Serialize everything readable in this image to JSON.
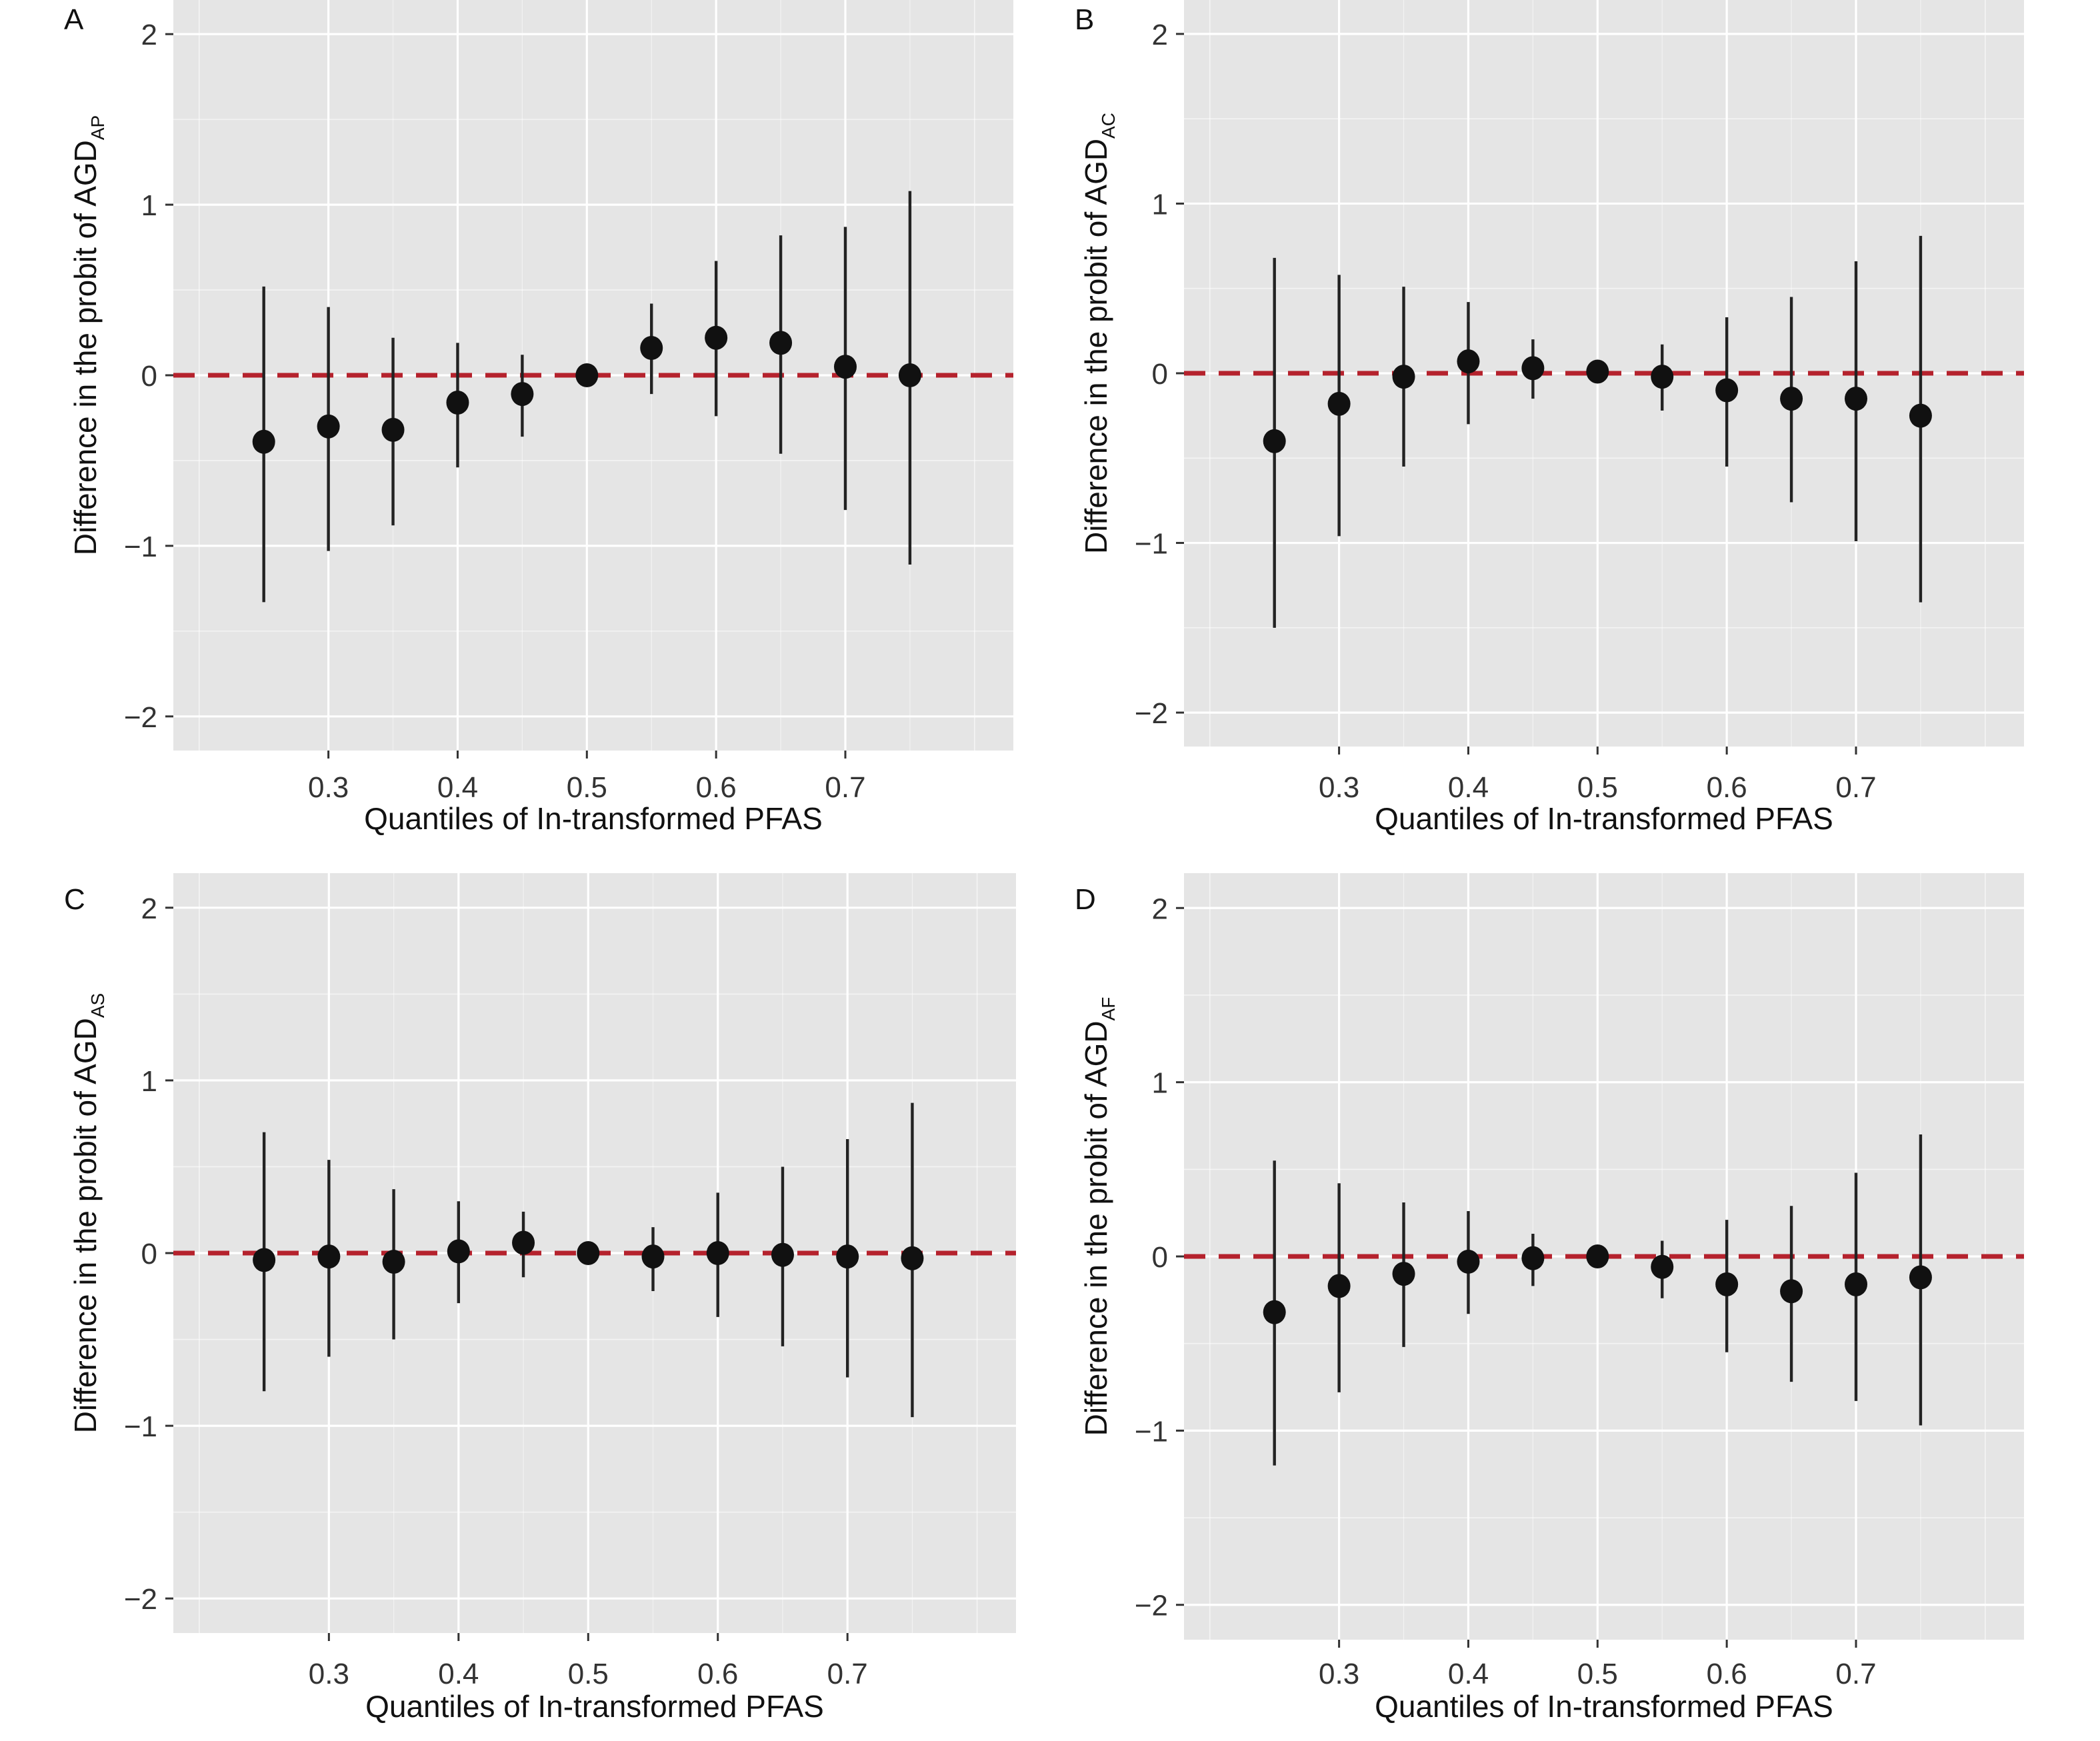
{
  "chart_data": [
    {
      "type": "scatter",
      "panel_label": "A",
      "xlabel": "Quantiles of In-transformed PFAS",
      "ylabel": "Difference in the probit of AGD",
      "ylabel_subscript": "AP",
      "xlim": [
        0.18,
        0.83
      ],
      "ylim": [
        -2.2,
        2.2
      ],
      "xticks": [
        0.3,
        0.4,
        0.5,
        0.6,
        0.7
      ],
      "yticks": [
        -2,
        -1,
        0,
        1,
        2
      ],
      "grid": true,
      "reference_line": {
        "y": 0,
        "style": "dashed",
        "color": "#b5222d"
      },
      "x": [
        0.25,
        0.3,
        0.35,
        0.4,
        0.45,
        0.5,
        0.55,
        0.6,
        0.65,
        0.7,
        0.75
      ],
      "y": [
        -0.39,
        -0.3,
        -0.32,
        -0.16,
        -0.11,
        0.0,
        0.16,
        0.22,
        0.19,
        0.05,
        0.0
      ],
      "lower": [
        -1.33,
        -1.03,
        -0.88,
        -0.54,
        -0.36,
        0.0,
        -0.11,
        -0.24,
        -0.46,
        -0.79,
        -1.11
      ],
      "upper": [
        0.52,
        0.4,
        0.22,
        0.19,
        0.12,
        0.0,
        0.42,
        0.67,
        0.82,
        0.87,
        1.08
      ]
    },
    {
      "type": "scatter",
      "panel_label": "B",
      "xlabel": "Quantiles of In-transformed PFAS",
      "ylabel": "Difference in the probit of AGD",
      "ylabel_subscript": "AC",
      "xlim": [
        0.18,
        0.83
      ],
      "ylim": [
        -2.2,
        2.2
      ],
      "xticks": [
        0.3,
        0.4,
        0.5,
        0.6,
        0.7
      ],
      "yticks": [
        -2,
        -1,
        0,
        1,
        2
      ],
      "grid": true,
      "reference_line": {
        "y": 0,
        "style": "dashed",
        "color": "#b5222d"
      },
      "x": [
        0.25,
        0.3,
        0.35,
        0.4,
        0.45,
        0.5,
        0.55,
        0.6,
        0.65,
        0.7,
        0.75
      ],
      "y": [
        -0.4,
        -0.18,
        -0.02,
        0.07,
        0.03,
        0.01,
        -0.02,
        -0.1,
        -0.15,
        -0.15,
        -0.25
      ],
      "lower": [
        -1.5,
        -0.96,
        -0.55,
        -0.3,
        -0.15,
        0.01,
        -0.22,
        -0.55,
        -0.76,
        -0.99,
        -1.35
      ],
      "upper": [
        0.68,
        0.58,
        0.51,
        0.42,
        0.2,
        0.01,
        0.17,
        0.33,
        0.45,
        0.66,
        0.81
      ]
    },
    {
      "type": "scatter",
      "panel_label": "C",
      "xlabel": "Quantiles of In-transformed PFAS",
      "ylabel": "Difference in the probit of AGD",
      "ylabel_subscript": "AS",
      "xlim": [
        0.18,
        0.83
      ],
      "ylim": [
        -2.2,
        2.2
      ],
      "xticks": [
        0.3,
        0.4,
        0.5,
        0.6,
        0.7
      ],
      "yticks": [
        -2,
        -1,
        0,
        1,
        2
      ],
      "grid": true,
      "reference_line": {
        "y": 0,
        "style": "dashed",
        "color": "#b5222d"
      },
      "x": [
        0.25,
        0.3,
        0.35,
        0.4,
        0.45,
        0.5,
        0.55,
        0.6,
        0.65,
        0.7,
        0.75
      ],
      "y": [
        -0.04,
        -0.02,
        -0.05,
        0.01,
        0.06,
        0.0,
        -0.02,
        0.0,
        -0.01,
        -0.02,
        -0.03
      ],
      "lower": [
        -0.8,
        -0.6,
        -0.5,
        -0.29,
        -0.14,
        0.0,
        -0.22,
        -0.37,
        -0.54,
        -0.72,
        -0.95
      ],
      "upper": [
        0.7,
        0.54,
        0.37,
        0.3,
        0.24,
        0.0,
        0.15,
        0.35,
        0.5,
        0.66,
        0.87
      ]
    },
    {
      "type": "scatter",
      "panel_label": "D",
      "xlabel": "Quantiles of In-transformed PFAS",
      "ylabel": "Difference in the probit of AGD",
      "ylabel_subscript": "AF",
      "xlim": [
        0.18,
        0.83
      ],
      "ylim": [
        -2.2,
        2.2
      ],
      "xticks": [
        0.3,
        0.4,
        0.5,
        0.6,
        0.7
      ],
      "yticks": [
        -2,
        -1,
        0,
        1,
        2
      ],
      "grid": true,
      "reference_line": {
        "y": 0,
        "style": "dashed",
        "color": "#b5222d"
      },
      "x": [
        0.25,
        0.3,
        0.35,
        0.4,
        0.45,
        0.5,
        0.55,
        0.6,
        0.65,
        0.7,
        0.75
      ],
      "y": [
        -0.32,
        -0.17,
        -0.1,
        -0.03,
        -0.01,
        0.0,
        -0.06,
        -0.16,
        -0.2,
        -0.16,
        -0.12
      ],
      "lower": [
        -1.2,
        -0.78,
        -0.52,
        -0.33,
        -0.17,
        0.0,
        -0.24,
        -0.55,
        -0.72,
        -0.83,
        -0.97
      ],
      "upper": [
        0.55,
        0.42,
        0.31,
        0.26,
        0.13,
        0.0,
        0.09,
        0.21,
        0.29,
        0.48,
        0.7
      ]
    }
  ],
  "colors": {
    "panel_bg": "#e5e5e5",
    "grid": "#ffffff",
    "point": "#111111",
    "errorbar": "#222222",
    "reference": "#b5222d"
  }
}
